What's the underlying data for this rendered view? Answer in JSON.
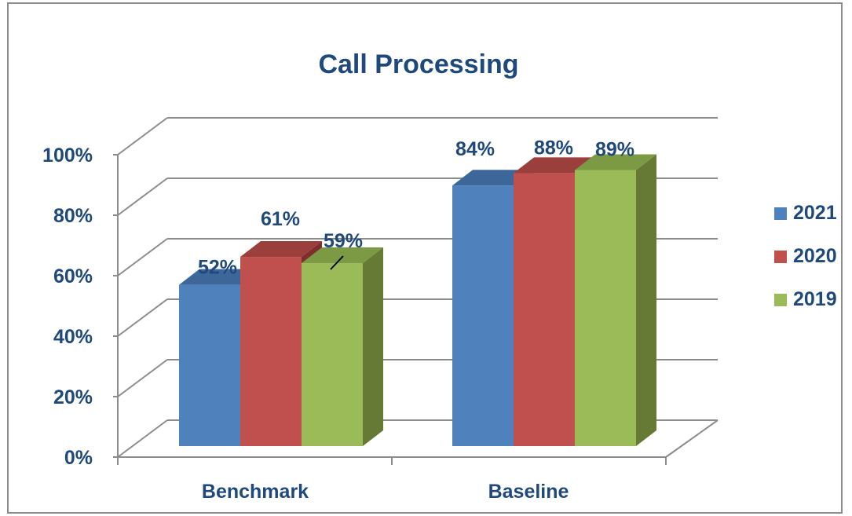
{
  "chart_data": {
    "type": "bar",
    "title": "Call Processing",
    "categories": [
      "Benchmark",
      "Baseline"
    ],
    "series": [
      {
        "name": "2021",
        "values": [
          52,
          84
        ],
        "labels": [
          "52%",
          "84%"
        ]
      },
      {
        "name": "2020",
        "values": [
          61,
          88
        ],
        "labels": [
          "61%",
          "88%"
        ]
      },
      {
        "name": "2019",
        "values": [
          59,
          89
        ],
        "labels": [
          "59%",
          "89%"
        ]
      }
    ],
    "y_ticks": [
      "0%",
      "20%",
      "40%",
      "60%",
      "80%",
      "100%"
    ],
    "ylim": [
      0,
      100
    ],
    "legend": "right",
    "grid": true,
    "style": "3d-clustered-column",
    "colors": {
      "2021": {
        "front": "#4f81bd",
        "top": "#3d6799",
        "side": "#2e5488"
      },
      "2020": {
        "front": "#c0504d",
        "top": "#9b3f3c",
        "side": "#7e2f2d"
      },
      "2019": {
        "front": "#9bbb59",
        "top": "#7c9a44",
        "side": "#667a36"
      },
      "text": "#1f497d",
      "grid": "#8c8c8c"
    }
  }
}
